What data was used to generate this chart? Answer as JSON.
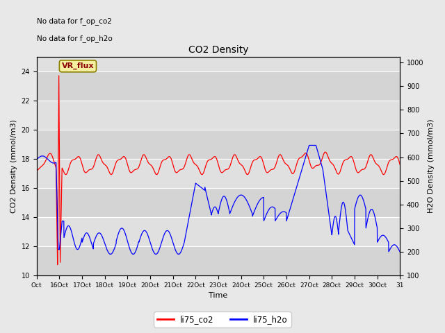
{
  "title": "CO2 Density",
  "xlabel": "Time",
  "ylabel_left": "CO2 Density (mmol/m3)",
  "ylabel_right": "H2O Density (mmol/m3)",
  "ylim_left": [
    10,
    25
  ],
  "ylim_right": [
    100,
    1025
  ],
  "annotations": [
    "No data for f_op_co2",
    "No data for f_op_h2o"
  ],
  "vr_flux_label": "VR_flux",
  "legend_labels": [
    "li75_co2",
    "li75_h2o"
  ],
  "background_color": "#e8e8e8",
  "stripe_light": "#e0e0e0",
  "stripe_dark": "#d0d0d0",
  "x_tick_labels": [
    "Oct",
    "16Oct",
    "17Oct",
    "18Oct",
    "19Oct",
    "20Oct",
    "21Oct",
    "22Oct",
    "23Oct",
    "24Oct",
    "25Oct",
    "26Oct",
    "27Oct",
    "28Oct",
    "29Oct",
    "30Oct",
    "31"
  ],
  "yticks_left": [
    10,
    12,
    14,
    16,
    18,
    20,
    22,
    24
  ],
  "yticks_right": [
    100,
    200,
    300,
    400,
    500,
    600,
    700,
    800,
    900,
    1000
  ]
}
